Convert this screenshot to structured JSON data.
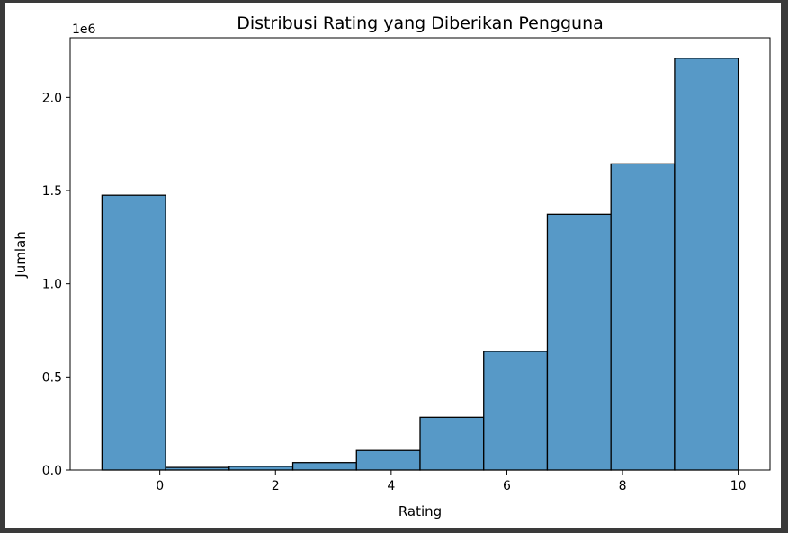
{
  "chart_data": {
    "type": "bar",
    "title": "Distribusi Rating yang Diberikan Pengguna",
    "xlabel": "Rating",
    "ylabel": "Jumlah",
    "y_offset_text": "1e6",
    "bar_color": "#5799c7",
    "edge_color": "#000000",
    "xlim": [
      -1.55,
      10.55
    ],
    "ylim": [
      0,
      2.32
    ],
    "xticks": [
      {
        "value": 0,
        "label": "0"
      },
      {
        "value": 2,
        "label": "2"
      },
      {
        "value": 4,
        "label": "4"
      },
      {
        "value": 6,
        "label": "6"
      },
      {
        "value": 8,
        "label": "8"
      },
      {
        "value": 10,
        "label": "10"
      }
    ],
    "yticks": [
      {
        "value": 0.0,
        "label": "0.0"
      },
      {
        "value": 0.5,
        "label": "0.5"
      },
      {
        "value": 1.0,
        "label": "1.0"
      },
      {
        "value": 1.5,
        "label": "1.5"
      },
      {
        "value": 2.0,
        "label": "2.0"
      }
    ],
    "bins": [
      {
        "x0": -1.0,
        "x1": 0.1,
        "value": 1.475
      },
      {
        "x0": 0.1,
        "x1": 1.2,
        "value": 0.014
      },
      {
        "x0": 1.2,
        "x1": 2.3,
        "value": 0.02
      },
      {
        "x0": 2.3,
        "x1": 3.4,
        "value": 0.04
      },
      {
        "x0": 3.4,
        "x1": 4.5,
        "value": 0.105
      },
      {
        "x0": 4.5,
        "x1": 5.6,
        "value": 0.283
      },
      {
        "x0": 5.6,
        "x1": 6.7,
        "value": 0.637
      },
      {
        "x0": 6.7,
        "x1": 7.8,
        "value": 1.373
      },
      {
        "x0": 7.8,
        "x1": 8.9,
        "value": 1.643
      },
      {
        "x0": 8.9,
        "x1": 10.0,
        "value": 2.21
      }
    ]
  }
}
